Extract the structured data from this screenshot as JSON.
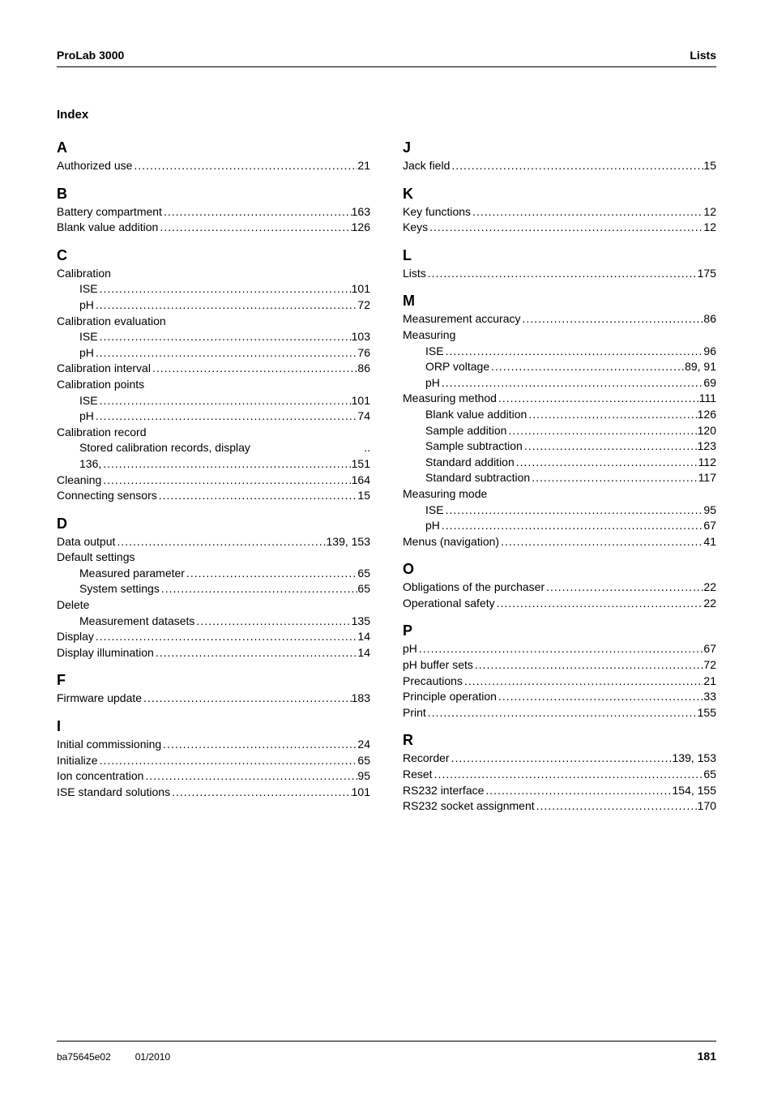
{
  "header": {
    "left": "ProLab 3000",
    "right": "Lists"
  },
  "index_title": "Index",
  "left_sections": [
    {
      "letter": "A",
      "entries": [
        {
          "label": "Authorized use",
          "page": "21",
          "sub": false
        }
      ]
    },
    {
      "letter": "B",
      "entries": [
        {
          "label": "Battery compartment",
          "page": "163",
          "sub": false
        },
        {
          "label": "Blank value addition",
          "page": "126",
          "sub": false
        }
      ]
    },
    {
      "letter": "C",
      "entries": [
        {
          "label": "Calibration",
          "page": "",
          "sub": false,
          "no_dots": true
        },
        {
          "label": "ISE",
          "page": "101",
          "sub": true
        },
        {
          "label": "pH",
          "page": "72",
          "sub": true
        },
        {
          "label": "Calibration evaluation",
          "page": "",
          "sub": false,
          "no_dots": true
        },
        {
          "label": "ISE",
          "page": "103",
          "sub": true
        },
        {
          "label": "pH",
          "page": "76",
          "sub": true
        },
        {
          "label": "Calibration interval",
          "page": "86",
          "sub": false
        },
        {
          "label": "Calibration points",
          "page": "",
          "sub": false,
          "no_dots": true
        },
        {
          "label": "ISE",
          "page": "101",
          "sub": true
        },
        {
          "label": "pH",
          "page": "74",
          "sub": true
        },
        {
          "label": "Calibration record",
          "page": "",
          "sub": false,
          "no_dots": true
        },
        {
          "label": "Stored calibration records, display",
          "page": "..",
          "sub": true,
          "no_dots": true,
          "page_only": true
        },
        {
          "label": "136,",
          "page": "151",
          "sub": true
        },
        {
          "label": "Cleaning",
          "page": "164",
          "sub": false
        },
        {
          "label": "Connecting sensors",
          "page": "15",
          "sub": false
        }
      ]
    },
    {
      "letter": "D",
      "entries": [
        {
          "label": "Data output",
          "page": "139, 153",
          "sub": false
        },
        {
          "label": "Default settings",
          "page": "",
          "sub": false,
          "no_dots": true
        },
        {
          "label": "Measured parameter",
          "page": "65",
          "sub": true
        },
        {
          "label": "System settings",
          "page": "65",
          "sub": true
        },
        {
          "label": "Delete",
          "page": "",
          "sub": false,
          "no_dots": true
        },
        {
          "label": "Measurement datasets",
          "page": "135",
          "sub": true
        },
        {
          "label": "Display",
          "page": "14",
          "sub": false
        },
        {
          "label": "Display illumination",
          "page": "14",
          "sub": false
        }
      ]
    },
    {
      "letter": "F",
      "entries": [
        {
          "label": "Firmware update",
          "page": "183",
          "sub": false
        }
      ]
    },
    {
      "letter": "I",
      "entries": [
        {
          "label": "Initial commissioning",
          "page": "24",
          "sub": false
        },
        {
          "label": "Initialize",
          "page": "65",
          "sub": false
        },
        {
          "label": "Ion concentration",
          "page": "95",
          "sub": false
        },
        {
          "label": "ISE standard solutions",
          "page": "101",
          "sub": false
        }
      ]
    }
  ],
  "right_sections": [
    {
      "letter": "J",
      "entries": [
        {
          "label": "Jack field",
          "page": "15",
          "sub": false
        }
      ]
    },
    {
      "letter": "K",
      "entries": [
        {
          "label": "Key functions",
          "page": "12",
          "sub": false
        },
        {
          "label": "Keys",
          "page": "12",
          "sub": false
        }
      ]
    },
    {
      "letter": "L",
      "entries": [
        {
          "label": "Lists",
          "page": "175",
          "sub": false
        }
      ]
    },
    {
      "letter": "M",
      "entries": [
        {
          "label": "Measurement accuracy",
          "page": "86",
          "sub": false
        },
        {
          "label": "Measuring",
          "page": "",
          "sub": false,
          "no_dots": true
        },
        {
          "label": "ISE",
          "page": "96",
          "sub": true
        },
        {
          "label": "ORP voltage",
          "page": "89, 91",
          "sub": true
        },
        {
          "label": "pH",
          "page": "69",
          "sub": true
        },
        {
          "label": "Measuring method",
          "page": "111",
          "sub": false
        },
        {
          "label": "Blank value addition",
          "page": "126",
          "sub": true
        },
        {
          "label": "Sample addition",
          "page": "120",
          "sub": true
        },
        {
          "label": "Sample subtraction",
          "page": "123",
          "sub": true
        },
        {
          "label": "Standard addition",
          "page": "112",
          "sub": true
        },
        {
          "label": "Standard subtraction",
          "page": "117",
          "sub": true
        },
        {
          "label": "Measuring mode",
          "page": "",
          "sub": false,
          "no_dots": true
        },
        {
          "label": "ISE",
          "page": "95",
          "sub": true
        },
        {
          "label": "pH",
          "page": "67",
          "sub": true
        },
        {
          "label": "Menus (navigation)",
          "page": "41",
          "sub": false
        }
      ]
    },
    {
      "letter": "O",
      "entries": [
        {
          "label": "Obligations of the purchaser",
          "page": "22",
          "sub": false
        },
        {
          "label": "Operational safety",
          "page": "22",
          "sub": false
        }
      ]
    },
    {
      "letter": "P",
      "entries": [
        {
          "label": "pH",
          "page": "67",
          "sub": false
        },
        {
          "label": "pH buffer sets",
          "page": "72",
          "sub": false
        },
        {
          "label": "Precautions",
          "page": "21",
          "sub": false
        },
        {
          "label": "Principle operation",
          "page": "33",
          "sub": false
        },
        {
          "label": "Print",
          "page": "155",
          "sub": false
        }
      ]
    },
    {
      "letter": "R",
      "entries": [
        {
          "label": "Recorder",
          "page": "139, 153",
          "sub": false
        },
        {
          "label": "Reset",
          "page": "65",
          "sub": false
        },
        {
          "label": "RS232 interface",
          "page": "154, 155",
          "sub": false
        },
        {
          "label": "RS232 socket assignment",
          "page": "170",
          "sub": false
        }
      ]
    }
  ],
  "footer": {
    "doc_id": "ba75645e02",
    "date": "01/2010",
    "page_num": "181"
  },
  "dot_fill": "......................................................................................................."
}
